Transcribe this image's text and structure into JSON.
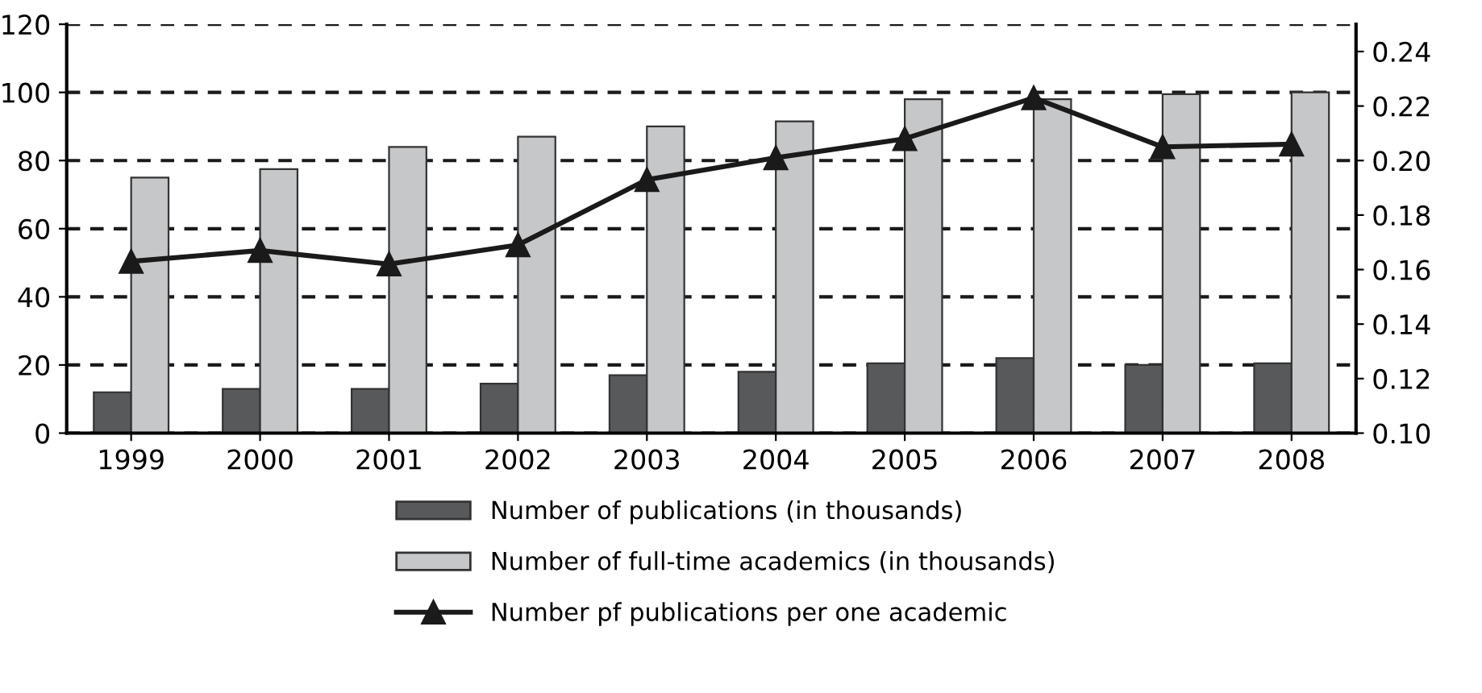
{
  "chart_data": {
    "type": "bar",
    "categories": [
      "1999",
      "2000",
      "2001",
      "2002",
      "2003",
      "2004",
      "2005",
      "2006",
      "2007",
      "2008"
    ],
    "series": [
      {
        "name": "Number of publications (in thousands)",
        "color": "#58595b",
        "values": [
          12,
          13,
          13,
          14.5,
          17,
          18,
          20.5,
          22,
          20,
          20.5
        ]
      },
      {
        "name": "Number of full-time academics (in thousands)",
        "color": "#c6c7c9",
        "values": [
          75,
          77.5,
          84,
          87,
          90,
          91.5,
          98,
          98,
          99.5,
          100
        ]
      },
      {
        "name": "Number pf publications per one academic",
        "type": "line",
        "axis": "y2",
        "color": "#1a1a1a",
        "marker": "triangle",
        "values": [
          0.163,
          0.167,
          0.162,
          0.169,
          0.193,
          0.201,
          0.208,
          0.223,
          0.205,
          0.206
        ]
      }
    ],
    "ylim": [
      0,
      120
    ],
    "yticks": [
      0,
      20,
      40,
      60,
      80,
      100,
      120
    ],
    "y2lim": [
      0.1,
      0.25
    ],
    "y2ticks": [
      {
        "value": 0.1,
        "label": "0.10"
      },
      {
        "value": 0.12,
        "label": "0.12"
      },
      {
        "value": 0.14,
        "label": "0.14"
      },
      {
        "value": 0.16,
        "label": "0.16"
      },
      {
        "value": 0.18,
        "label": "0.18"
      },
      {
        "value": 0.2,
        "label": "0.20"
      },
      {
        "value": 0.22,
        "label": "0.22"
      },
      {
        "value": 0.24,
        "label": "0.24"
      }
    ],
    "grid": "y",
    "legend": "bottom"
  }
}
